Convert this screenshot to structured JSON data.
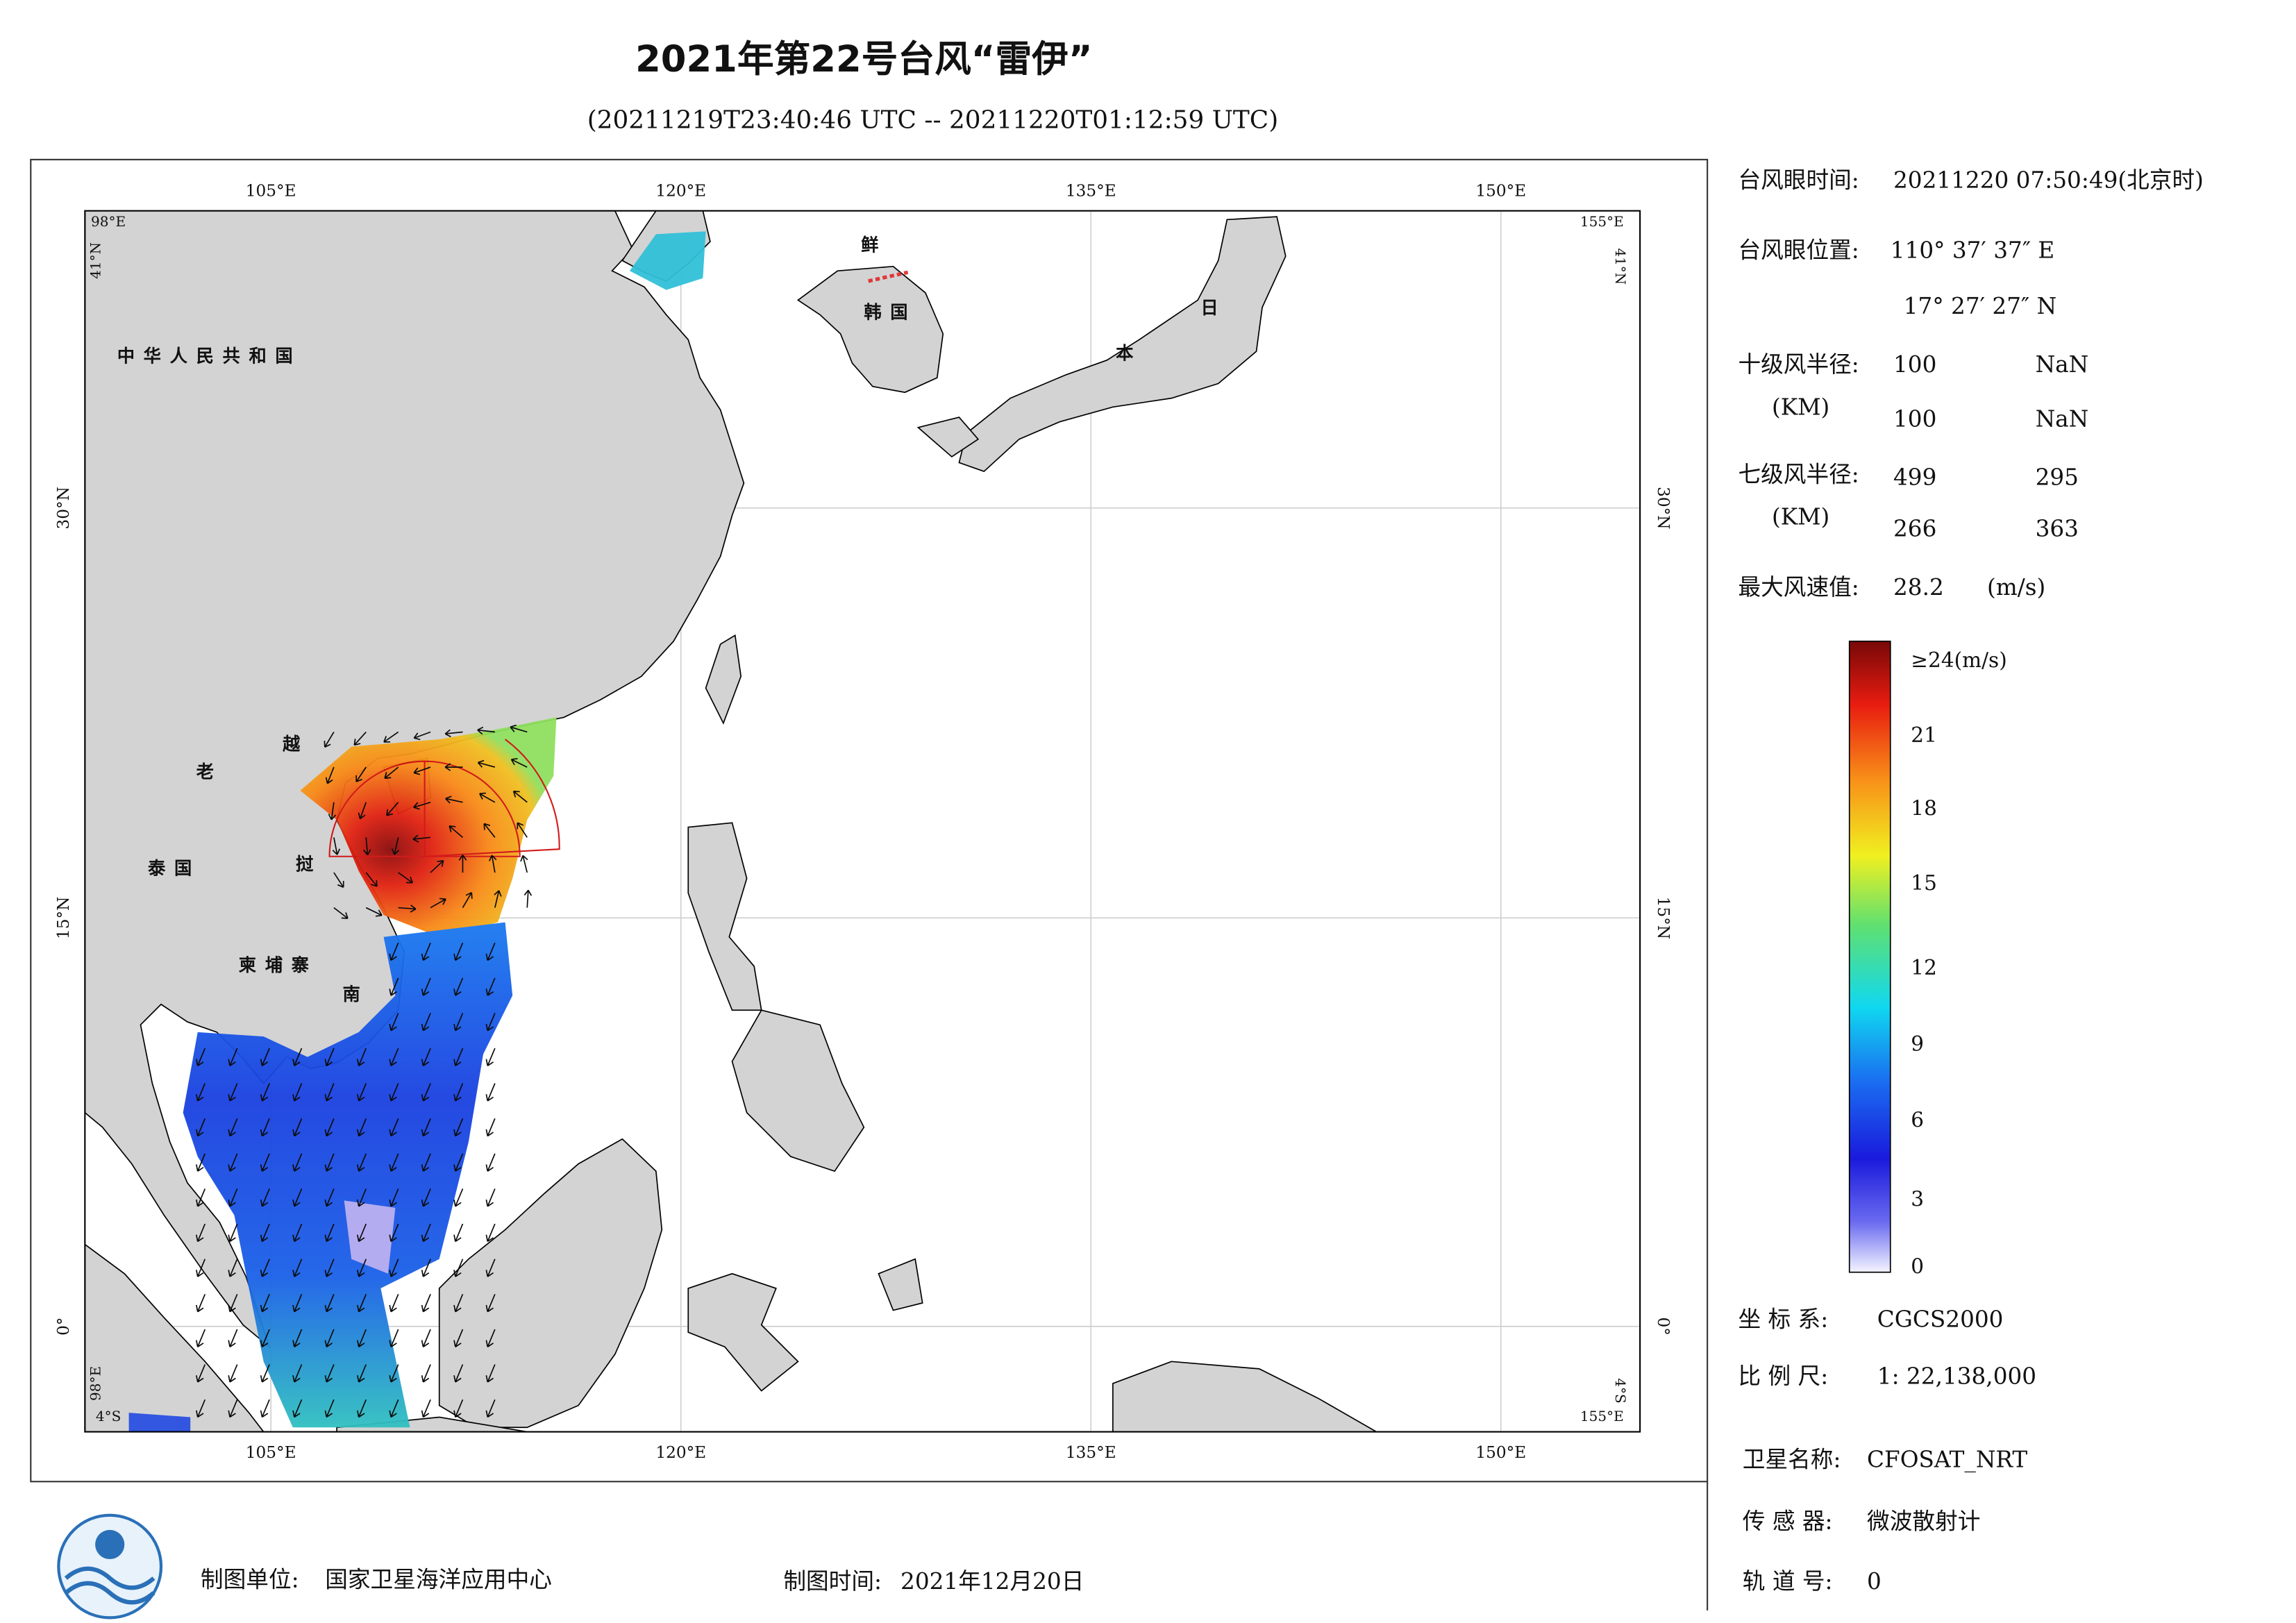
{
  "header": {
    "title": "2021年第22号台风“雷伊”",
    "subtitle": "(20211219T23:40:46 UTC -- 20211220T01:12:59 UTC)"
  },
  "map": {
    "lon_labels": [
      "105°E",
      "120°E",
      "135°E",
      "150°E"
    ],
    "lat_labels": [
      "30°N",
      "15°N",
      "0°"
    ],
    "corners": {
      "west": "98°E",
      "east": "155°E",
      "north": "41°N",
      "south": "4°S"
    },
    "places": [
      "中华人民共和国",
      "老",
      "越",
      "泰国",
      "挝",
      "柬埔寨",
      "南",
      "鲜",
      "韩国",
      "日",
      "本"
    ]
  },
  "info": {
    "eye_time_label": "台风眼时间:",
    "eye_time": "20211220 07:50:49(北京时)",
    "eye_pos_label": "台风眼位置:",
    "eye_lon": "110° 37′ 37″ E",
    "eye_lat": "17° 27′ 27″ N",
    "r10_label": "十级风半径:",
    "r10_unit": "(KM)",
    "r10": [
      [
        100,
        "NaN"
      ],
      [
        100,
        "NaN"
      ]
    ],
    "r7_label": "七级风半径:",
    "r7_unit": "(KM)",
    "r7": [
      [
        499,
        295
      ],
      [
        266,
        363
      ]
    ],
    "max_wind_label": "最大风速值:",
    "max_wind": 28.2,
    "max_wind_unit": "(m/s)",
    "crs_label": "坐 标 系:",
    "crs": "CGCS2000",
    "scale_label": "比 例 尺:",
    "scale": "1: 22,138,000"
  },
  "colorbar": {
    "labels": [
      "≥24(m/s)",
      21,
      18,
      15,
      12,
      9,
      6,
      3,
      0
    ]
  },
  "satellite": {
    "name_label": "卫星名称:",
    "name": "CFOSAT_NRT",
    "sensor_label": "传 感 器:",
    "sensor": "微波散射计",
    "orbit_label": "轨 道 号:",
    "orbit": 0
  },
  "footer": {
    "unit_label": "制图单位:",
    "unit": "国家卫星海洋应用中心",
    "date_label": "制图时间:",
    "date": "2021年12月20日"
  }
}
